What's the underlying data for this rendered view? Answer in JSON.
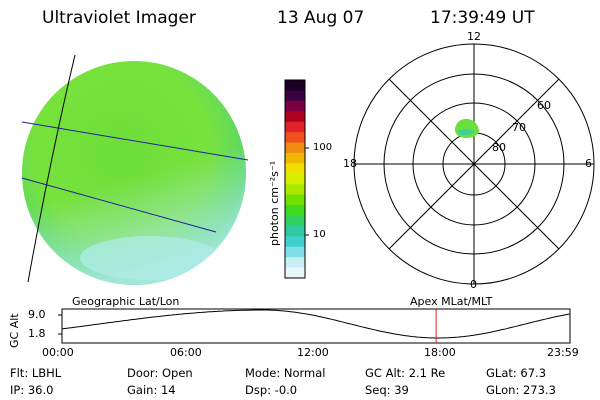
{
  "header": {
    "title": "Ultraviolet Imager",
    "date": "13 Aug 07",
    "time": "17:39:49 UT"
  },
  "colorbar": {
    "unit_label": "photon cm⁻²s⁻¹",
    "ticks": [
      "100",
      "10"
    ],
    "colors": [
      "#1a0020",
      "#3a0040",
      "#7a0040",
      "#b00020",
      "#e0202a",
      "#f05020",
      "#f08a10",
      "#f0b800",
      "#f0e000",
      "#d8f000",
      "#a8e800",
      "#70e000",
      "#40d820",
      "#30d060",
      "#30c8a0",
      "#40d0d0",
      "#80e0e8",
      "#c8f0f4",
      "#e8f8fa"
    ]
  },
  "image": {
    "disk_color": "#7ae23a",
    "low_color": "#a8e8e0",
    "track_color": "#2020a0"
  },
  "polar": {
    "labels": {
      "top": "12",
      "bottom": "0",
      "left": "18",
      "right": "6"
    },
    "rings": [
      "60",
      "70",
      "80"
    ],
    "spot_color": "#6ae040",
    "spot_core": "#30c8c0"
  },
  "orbit": {
    "left_title": "Geographic Lat/Lon",
    "right_title": "Apex  MLat/MLT",
    "ylabel": "GC Alt",
    "yticks": [
      "9.0",
      "1.8"
    ],
    "xticks": [
      "00:00",
      "06:00",
      "12:00",
      "18:00",
      "23:59"
    ],
    "marker_time": "17:39:49",
    "marker_color": "#e02020"
  },
  "status": {
    "filter": "Flt: LBHL",
    "door": "Door: Open",
    "mode": "Mode: Normal",
    "gc_alt": "GC Alt: 2.1 Re",
    "glat": "GLat:  67.3",
    "ip": "IP: 36.0",
    "gain": "Gain: 14",
    "dsp": "Dsp:    -0.0",
    "seq": "Seq: 39",
    "glon": "GLon: 273.3"
  }
}
